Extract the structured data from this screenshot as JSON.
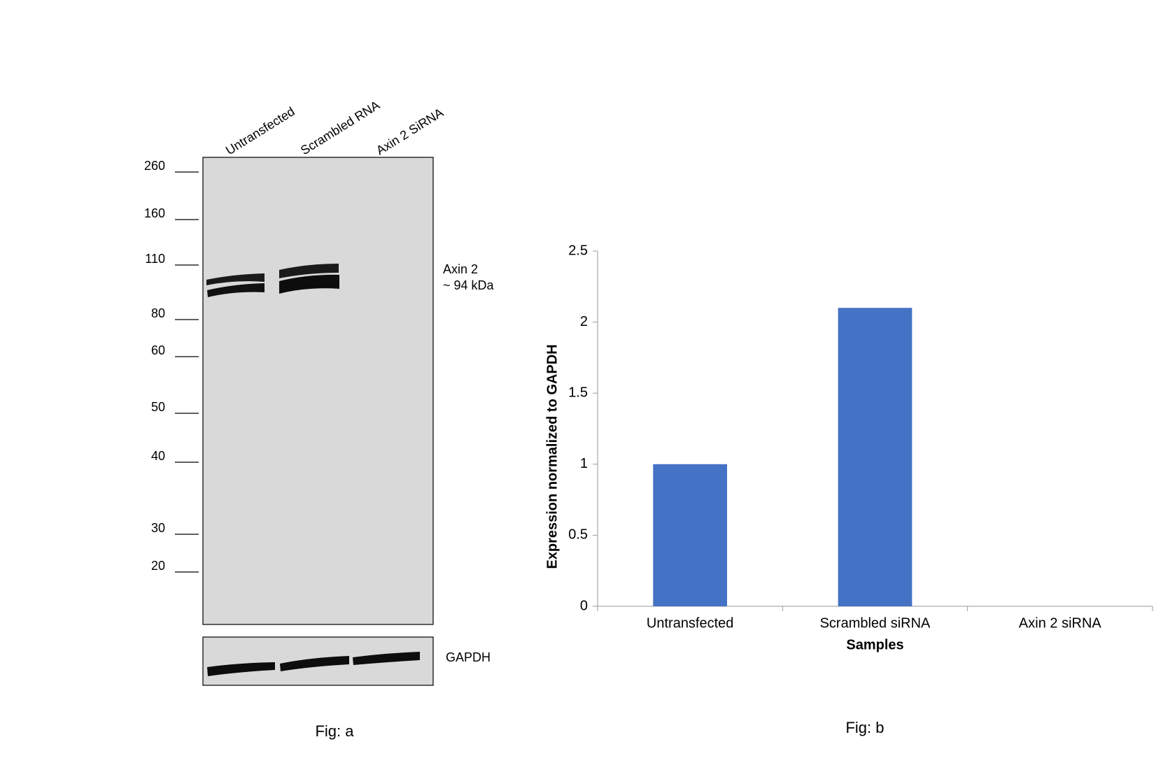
{
  "western_blot": {
    "lanes": [
      "Untransfected",
      "Scrambled RNA",
      "Axin 2 SiRNA"
    ],
    "markers": [
      "260",
      "160",
      "110",
      "80",
      "60",
      "50",
      "40",
      "30",
      "20"
    ],
    "band_label": "Axin 2",
    "band_size": "~ 94 kDa",
    "loading_control": "GAPDH",
    "caption": "Fig: a"
  },
  "chart_data": {
    "type": "bar",
    "categories": [
      "Untransfected",
      "Scrambled siRNA",
      "Axin 2 siRNA"
    ],
    "values": [
      1,
      2.1,
      0
    ],
    "color": "#4472c4",
    "ylim": [
      0,
      2.5
    ],
    "yticks": [
      0,
      0.5,
      1,
      1.5,
      2,
      2.5
    ],
    "xlabel": "Samples",
    "ylabel": "Expression normalized to GAPDH",
    "caption": "Fig: b",
    "grid": false
  }
}
